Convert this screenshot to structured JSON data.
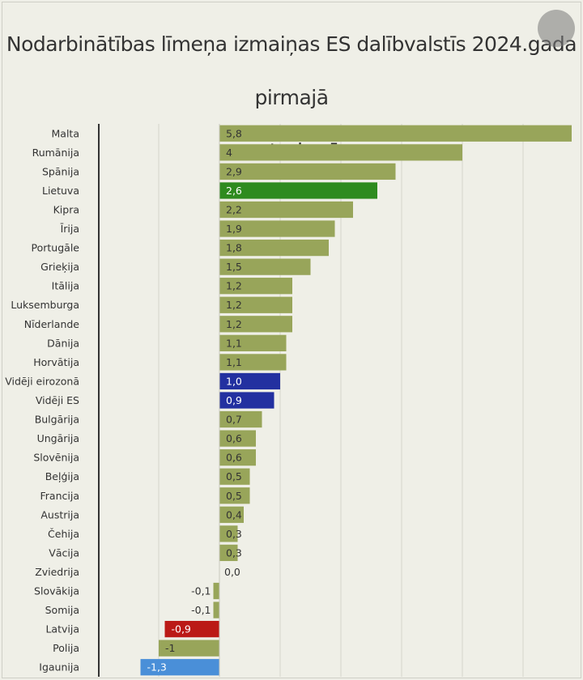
{
  "title": "Nodarbinātības līmeņa izmaiņas ES dalībvalstīs 2024.gada pirmajā",
  "title_line2": "ceturksnī",
  "chart_data": {
    "type": "bar",
    "orientation": "horizontal",
    "title": "Nodarbinātības līmeņa izmaiņas ES dalībvalstīs 2024.gada pirmajā ceturksnī",
    "xlim": [
      -1.3,
      5.8
    ],
    "grid": true,
    "colors": {
      "default": "#98a55a",
      "highlight_lv_lt": "#2e8b1f",
      "average": "#2330a0",
      "latvia": "#bb1a16",
      "estonia": "#4a8fd8"
    },
    "categories": [
      "Malta",
      "Rumānija",
      "Spānija",
      "Lietuva",
      "Kipra",
      "Īrija",
      "Portugāle",
      "Grieķija",
      "Itālija",
      "Luksemburga",
      "Nīderlande",
      "Dānija",
      "Horvātija",
      "Vidēji eirozonā",
      "Vidēji ES",
      "Bulgārija",
      "Ungārija",
      "Slovēnija",
      "Beļģija",
      "Francija",
      "Austrija",
      "Čehija",
      "Vācija",
      "Zviedrija",
      "Slovākija",
      "Somija",
      "Latvija",
      "Polija",
      "Igaunija"
    ],
    "values": [
      5.8,
      4,
      2.9,
      2.6,
      2.2,
      1.9,
      1.8,
      1.5,
      1.2,
      1.2,
      1.2,
      1.1,
      1.1,
      1.0,
      0.9,
      0.7,
      0.6,
      0.6,
      0.5,
      0.5,
      0.4,
      0.3,
      0.3,
      0.0,
      -0.1,
      -0.1,
      -0.9,
      -1,
      -1.3
    ],
    "labels": [
      "5,8",
      "4",
      "2,9",
      "2,6",
      "2,2",
      "1,9",
      "1,8",
      "1,5",
      "1,2",
      "1,2",
      "1,2",
      "1,1",
      "1,1",
      "1,0",
      "0,9",
      "0,7",
      "0,6",
      "0,6",
      "0,5",
      "0,5",
      "0,4",
      "0,3",
      "0,3",
      "0,0",
      "-0,1",
      "-0,1",
      "-0,9",
      "-1",
      "-1,3"
    ],
    "bar_colors": [
      "default",
      "default",
      "default",
      "highlight_lv_lt",
      "default",
      "default",
      "default",
      "default",
      "default",
      "default",
      "default",
      "default",
      "default",
      "average",
      "average",
      "default",
      "default",
      "default",
      "default",
      "default",
      "default",
      "default",
      "default",
      "default",
      "default",
      "default",
      "latvia",
      "default",
      "estonia"
    ]
  }
}
